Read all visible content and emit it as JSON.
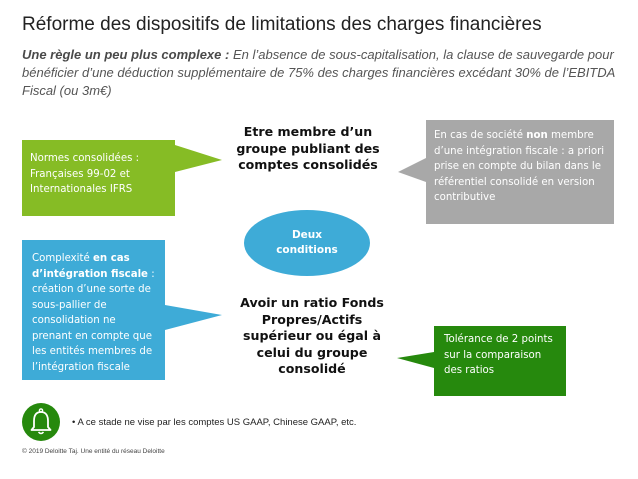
{
  "title": "Réforme des dispositifs de limitations des charges financières",
  "subtitle": {
    "bold": "Une règle un peu plus complexe :",
    "text": " En l’absence de sous-capitalisation, la clause de sauvegarde pour bénéficier d’une déduction supplémentaire de 75% des charges financières excédant 30% de l’EBITDA Fiscal (ou 3m€)"
  },
  "center": {
    "top_condition": "Etre membre d’un groupe publiant des comptes consolidés",
    "ellipse": "Deux conditions",
    "bottom_condition": "Avoir un ratio Fonds Propres/Actifs supérieur ou égal à celui du groupe consolidé"
  },
  "callouts": {
    "norms": "Normes consolidées : Françaises 99-02 et Internationales IFRS",
    "non_integration": {
      "part1": "En cas de société ",
      "bold": "non",
      "part2": " membre d’une intégration fiscale : a priori prise en compte du bilan dans le référentiel consolidé en version contributive"
    },
    "complexity": {
      "part1": "Complexité ",
      "bold": "en cas d’intégration fiscale",
      "part2": " : création d’une sorte de sous-pallier de consolidation ne prenant en compte que les entités membres de l’intégration fiscale"
    },
    "tolerance": "Tolérance de 2 points sur la comparaison des ratios"
  },
  "footnote": "• A ce stade ne vise par les comptes US GAAP, Chinese GAAP, etc.",
  "copyright": "© 2019 Deloitte Taj. Une entité du réseau Deloitte",
  "icons": {
    "bell": "bell-icon"
  },
  "colors": {
    "green": "#86bc25",
    "dark_green": "#26890d",
    "blue": "#3eabd7",
    "grey": "#a8a8a8"
  }
}
